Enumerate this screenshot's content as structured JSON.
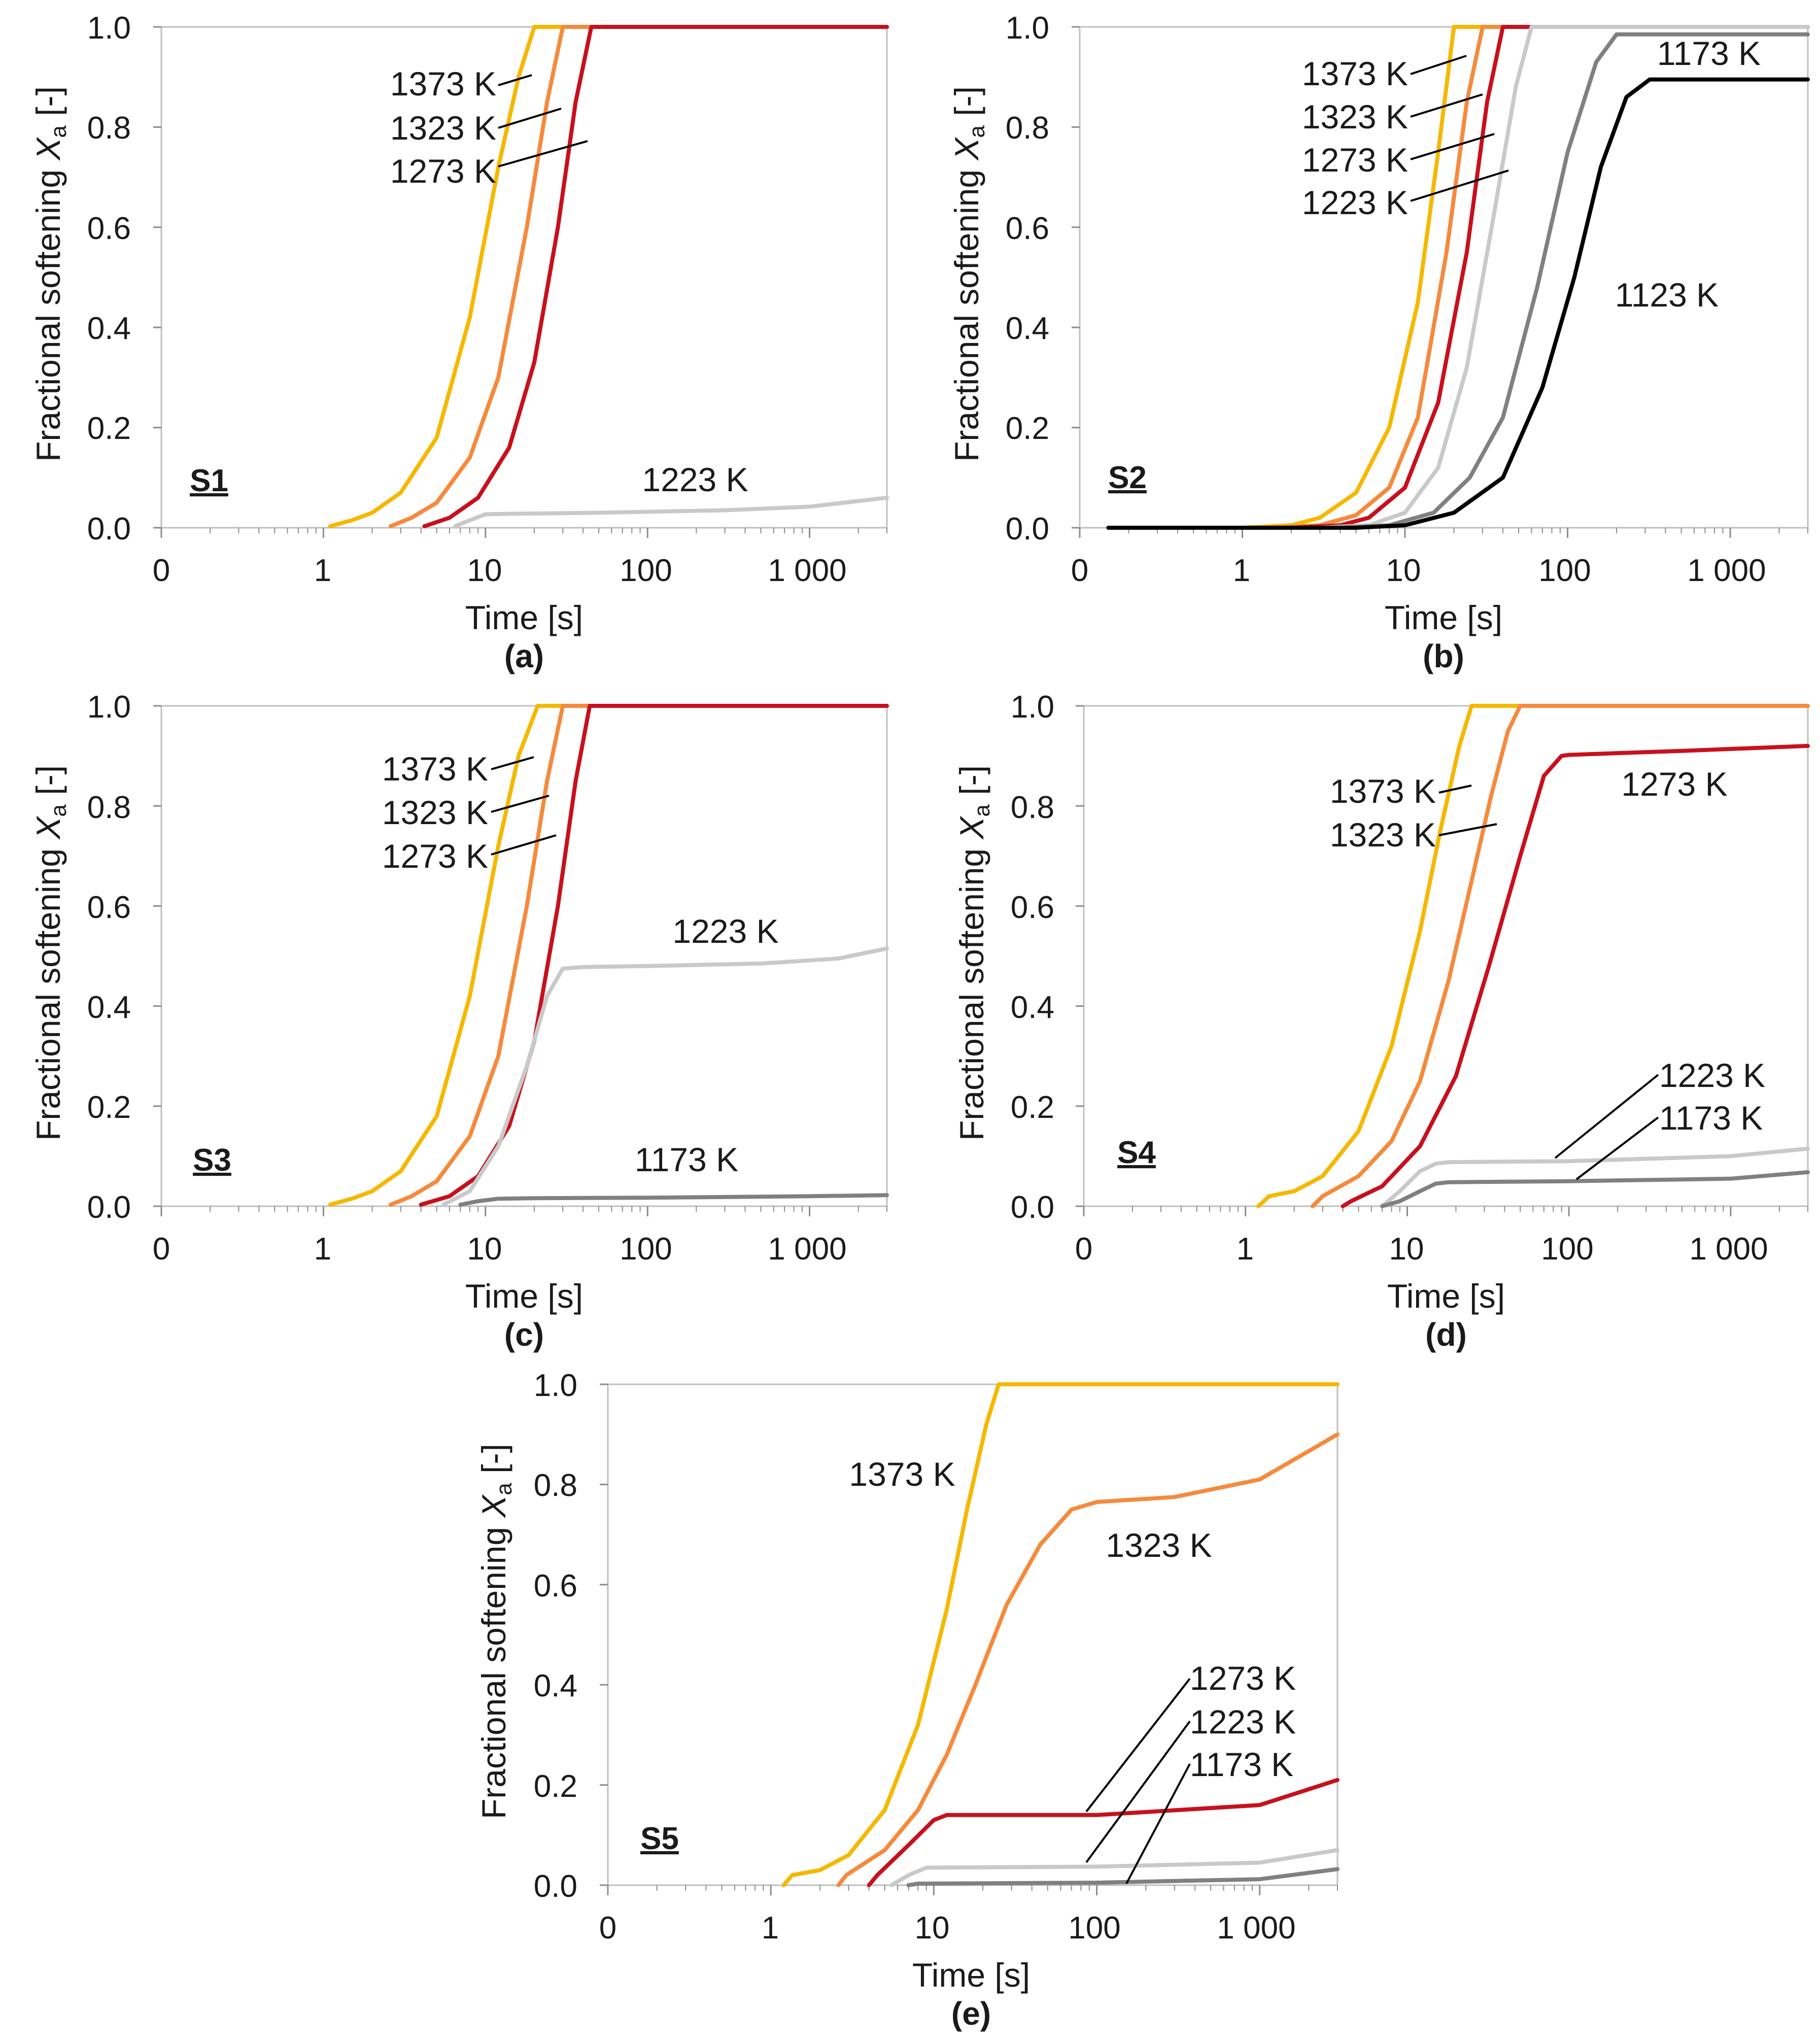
{
  "figure": {
    "xlabel": "Time [s]",
    "ylabel_main": "Fractional softening ",
    "ylabel_var": "X",
    "ylabel_sub": "a",
    "ylabel_unit": " [-]",
    "x_ticks": [
      "0",
      "1",
      "10",
      "100",
      "1 000"
    ],
    "y_ticks": [
      "0.0",
      "0.2",
      "0.4",
      "0.6",
      "0.8",
      "1.0"
    ],
    "colors": {
      "1373 K": "#f5b800",
      "1323 K": "#f58a3c",
      "1273 K": "#c8101d",
      "1223 K": "#c9c9c9",
      "1173 K": "#808080",
      "1123 K": "#000000"
    }
  },
  "chart_data": [
    {
      "type": "line",
      "panel": "(a)",
      "tag": "S1",
      "xscale": "log",
      "xlim": [
        0.1,
        3000
      ],
      "ylim": [
        0,
        1
      ],
      "xlabel": "Time [s]",
      "ylabel": "Fractional softening Xa [-]",
      "series": [
        {
          "name": "1373 K",
          "x": [
            1.1,
            1.5,
            2,
            3,
            5,
            8,
            12,
            16,
            20,
            3000
          ],
          "y": [
            0.003,
            0.015,
            0.03,
            0.07,
            0.18,
            0.42,
            0.72,
            0.9,
            1.0,
            1.0
          ]
        },
        {
          "name": "1323 K",
          "x": [
            2.6,
            3.5,
            5,
            8,
            12,
            18,
            24,
            30,
            3000
          ],
          "y": [
            0.003,
            0.02,
            0.05,
            0.14,
            0.3,
            0.6,
            0.85,
            1.0,
            1.0
          ]
        },
        {
          "name": "1273 K",
          "x": [
            4.2,
            6,
            9,
            14,
            20,
            28,
            36,
            45,
            3000
          ],
          "y": [
            0.003,
            0.02,
            0.06,
            0.16,
            0.33,
            0.6,
            0.85,
            1.0,
            1.0
          ]
        },
        {
          "name": "1223 K",
          "x": [
            6.5,
            8,
            10,
            15,
            50,
            300,
            1000,
            3000
          ],
          "y": [
            0.003,
            0.015,
            0.027,
            0.028,
            0.03,
            0.035,
            0.042,
            0.06
          ]
        }
      ],
      "labels": [
        "1373 K",
        "1323 K",
        "1273 K",
        "1223 K"
      ]
    },
    {
      "type": "line",
      "panel": "(b)",
      "tag": "S2",
      "xscale": "log",
      "xlim": [
        0.1,
        3000
      ],
      "ylim": [
        0,
        1
      ],
      "xlabel": "Time [s]",
      "ylabel": "Fractional softening Xa [-]",
      "series": [
        {
          "name": "1373 K",
          "x": [
            1,
            2,
            3,
            5,
            8,
            12,
            16,
            20,
            3000
          ],
          "y": [
            0.0,
            0.005,
            0.02,
            0.07,
            0.2,
            0.45,
            0.75,
            1.0,
            1.0
          ]
        },
        {
          "name": "1323 K",
          "x": [
            1.5,
            3,
            5,
            8,
            12,
            18,
            24,
            30,
            3000
          ],
          "y": [
            0.0,
            0.005,
            0.025,
            0.08,
            0.22,
            0.55,
            0.85,
            1.0,
            1.0
          ]
        },
        {
          "name": "1273 K",
          "x": [
            2,
            4,
            6,
            10,
            16,
            24,
            32,
            40,
            3000
          ],
          "y": [
            0.0,
            0.005,
            0.02,
            0.08,
            0.25,
            0.55,
            0.85,
            1.0,
            1.0
          ]
        },
        {
          "name": "1223 K",
          "x": [
            3,
            6,
            10,
            16,
            24,
            35,
            48,
            60,
            3000
          ],
          "y": [
            0.0,
            0.005,
            0.03,
            0.12,
            0.32,
            0.62,
            0.88,
            1.0,
            1.0
          ]
        },
        {
          "name": "1173 K",
          "x": [
            4,
            8,
            15,
            25,
            40,
            65,
            100,
            150,
            200,
            3000
          ],
          "y": [
            0.0,
            0.005,
            0.03,
            0.1,
            0.22,
            0.48,
            0.75,
            0.93,
            0.985,
            0.985
          ]
        },
        {
          "name": "1123 K",
          "x": [
            0.15,
            5,
            10,
            20,
            40,
            70,
            110,
            160,
            230,
            320,
            3000
          ],
          "y": [
            0.0,
            0.0,
            0.005,
            0.03,
            0.1,
            0.28,
            0.5,
            0.72,
            0.86,
            0.895,
            0.895
          ]
        }
      ],
      "labels": [
        "1373 K",
        "1323 K",
        "1273 K",
        "1223 K",
        "1173 K",
        "1123 K"
      ]
    },
    {
      "type": "line",
      "panel": "(c)",
      "tag": "S3",
      "xscale": "log",
      "xlim": [
        0.1,
        3000
      ],
      "ylim": [
        0,
        1
      ],
      "xlabel": "Time [s]",
      "ylabel": "Fractional softening Xa [-]",
      "series": [
        {
          "name": "1373 K",
          "x": [
            1.1,
            1.5,
            2,
            3,
            5,
            8,
            12,
            16,
            21,
            3000
          ],
          "y": [
            0.003,
            0.015,
            0.03,
            0.07,
            0.18,
            0.42,
            0.72,
            0.9,
            1.0,
            1.0
          ]
        },
        {
          "name": "1323 K",
          "x": [
            2.6,
            3.5,
            5,
            8,
            12,
            18,
            24,
            30,
            3000
          ],
          "y": [
            0.003,
            0.02,
            0.05,
            0.14,
            0.3,
            0.6,
            0.85,
            1.0,
            1.0
          ]
        },
        {
          "name": "1273 K",
          "x": [
            4,
            6,
            9,
            14,
            20,
            28,
            36,
            44,
            3000
          ],
          "y": [
            0.003,
            0.02,
            0.06,
            0.16,
            0.33,
            0.6,
            0.85,
            1.0,
            1.0
          ]
        },
        {
          "name": "1223 K",
          "x": [
            5.5,
            8,
            12,
            18,
            24,
            30,
            40,
            100,
            500,
            1500,
            3000
          ],
          "y": [
            0.003,
            0.03,
            0.12,
            0.28,
            0.42,
            0.475,
            0.478,
            0.48,
            0.485,
            0.495,
            0.515
          ]
        },
        {
          "name": "1173 K",
          "x": [
            7,
            9,
            12,
            20,
            100,
            1000,
            3000
          ],
          "y": [
            0.003,
            0.01,
            0.015,
            0.016,
            0.017,
            0.02,
            0.022
          ]
        }
      ],
      "labels": [
        "1373 K",
        "1323 K",
        "1273 K",
        "1223 K",
        "1173 K"
      ]
    },
    {
      "type": "line",
      "panel": "(d)",
      "tag": "S4",
      "xscale": "log",
      "xlim": [
        0.1,
        3000
      ],
      "ylim": [
        0,
        1
      ],
      "xlabel": "Time [s]",
      "ylabel": "Fractional softening Xa [-]",
      "series": [
        {
          "name": "1373 K",
          "x": [
            1.2,
            1.4,
            2,
            3,
            5,
            8,
            12,
            16,
            21,
            25,
            3000
          ],
          "y": [
            0.0,
            0.02,
            0.03,
            0.06,
            0.15,
            0.32,
            0.55,
            0.75,
            0.92,
            1.0,
            1.0
          ]
        },
        {
          "name": "1323 K",
          "x": [
            2.6,
            3,
            5,
            8,
            12,
            18,
            25,
            33,
            42,
            50,
            3000
          ],
          "y": [
            0.0,
            0.02,
            0.06,
            0.13,
            0.25,
            0.45,
            0.65,
            0.82,
            0.95,
            1.0,
            1.0
          ]
        },
        {
          "name": "1273 K",
          "x": [
            4,
            4.5,
            7,
            12,
            20,
            32,
            50,
            70,
            90,
            100,
            500,
            3000
          ],
          "y": [
            0.0,
            0.01,
            0.04,
            0.12,
            0.26,
            0.48,
            0.7,
            0.86,
            0.9,
            0.902,
            0.91,
            0.92
          ]
        },
        {
          "name": "1223 K",
          "x": [
            7,
            9,
            12,
            15,
            18,
            100,
            1000,
            3000
          ],
          "y": [
            0.0,
            0.03,
            0.07,
            0.085,
            0.088,
            0.09,
            0.1,
            0.115
          ]
        },
        {
          "name": "1173 K",
          "x": [
            7,
            9,
            12,
            15,
            18,
            100,
            1000,
            3000
          ],
          "y": [
            0.0,
            0.01,
            0.03,
            0.045,
            0.048,
            0.05,
            0.055,
            0.068
          ]
        }
      ],
      "labels": [
        "1373 K",
        "1323 K",
        "1273 K",
        "1223 K",
        "1173 K"
      ]
    },
    {
      "type": "line",
      "panel": "(e)",
      "tag": "S5",
      "xscale": "log",
      "xlim": [
        0.1,
        3000
      ],
      "ylim": [
        0,
        1
      ],
      "xlabel": "Time [s]",
      "ylabel": "Fractional softening Xa [-]",
      "series": [
        {
          "name": "1373 K",
          "x": [
            1.2,
            1.35,
            2,
            3,
            5,
            8,
            12,
            16,
            21,
            25,
            3000
          ],
          "y": [
            0.0,
            0.02,
            0.03,
            0.06,
            0.15,
            0.32,
            0.55,
            0.75,
            0.92,
            1.0,
            1.0
          ]
        },
        {
          "name": "1323 K",
          "x": [
            2.6,
            2.9,
            5,
            8,
            12,
            18,
            28,
            45,
            70,
            100,
            300,
            1000,
            3000
          ],
          "y": [
            0.0,
            0.02,
            0.07,
            0.15,
            0.26,
            0.4,
            0.56,
            0.68,
            0.75,
            0.765,
            0.775,
            0.81,
            0.9
          ]
        },
        {
          "name": "1273 K",
          "x": [
            4,
            4.5,
            7,
            10,
            12,
            100,
            1000,
            3000
          ],
          "y": [
            0.0,
            0.02,
            0.08,
            0.13,
            0.14,
            0.14,
            0.16,
            0.21
          ]
        },
        {
          "name": "1223 K",
          "x": [
            5.5,
            7,
            9,
            100,
            1000,
            3000
          ],
          "y": [
            0.0,
            0.02,
            0.035,
            0.037,
            0.045,
            0.07
          ]
        },
        {
          "name": "1173 K",
          "x": [
            7,
            8,
            100,
            1000,
            3000
          ],
          "y": [
            0.0,
            0.003,
            0.005,
            0.012,
            0.032
          ]
        }
      ],
      "labels": [
        "1373 K",
        "1323 K",
        "1273 K",
        "1223 K",
        "1173 K"
      ]
    }
  ]
}
